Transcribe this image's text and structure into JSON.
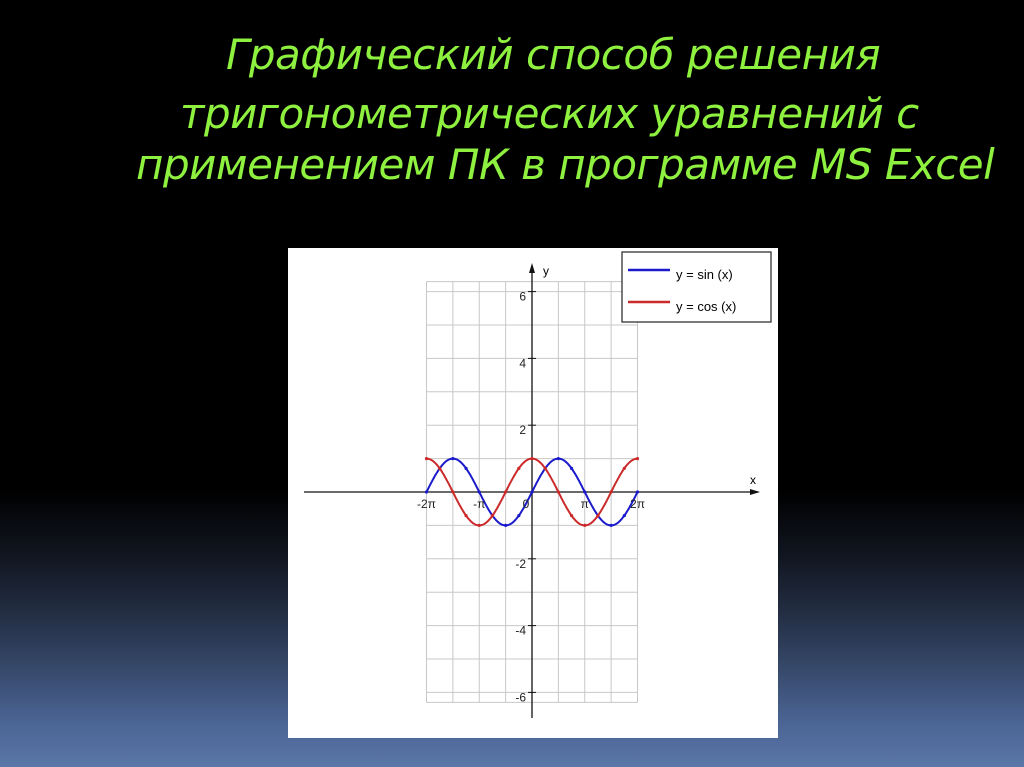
{
  "slide": {
    "title_lines": [
      "Графический способ решения",
      "тригонометрических уравнений  с",
      "применением ПК в программе MS Excel"
    ],
    "title_color": "#8ef03f"
  },
  "chart_data": {
    "type": "line",
    "title": "",
    "xlabel": "x",
    "ylabel": "y",
    "xlim": [
      -6.283,
      6.283
    ],
    "ylim": [
      -7,
      7
    ],
    "grid": true,
    "legend_position": "top-right",
    "x_ticks": [
      {
        "value": -6.283,
        "label": "-2π"
      },
      {
        "value": -3.1416,
        "label": "-π"
      },
      {
        "value": 0,
        "label": "0"
      },
      {
        "value": 3.1416,
        "label": "π"
      },
      {
        "value": 6.283,
        "label": "2π"
      }
    ],
    "y_ticks": [
      {
        "value": 6,
        "label": "6"
      },
      {
        "value": 4,
        "label": "4"
      },
      {
        "value": 2,
        "label": "2"
      },
      {
        "value": -2,
        "label": "-2"
      },
      {
        "value": -4,
        "label": "-4"
      },
      {
        "value": -6,
        "label": "-6"
      }
    ],
    "series": [
      {
        "name": "y = sin (x)",
        "function": "sin",
        "color": "#1a1acc",
        "x": [
          -6.283,
          -5.498,
          -4.712,
          -3.927,
          -3.142,
          -2.356,
          -1.571,
          -0.785,
          0,
          0.785,
          1.571,
          2.356,
          3.142,
          3.927,
          4.712,
          5.498,
          6.283
        ],
        "y": [
          0,
          0.707,
          1,
          0.707,
          0,
          -0.707,
          -1,
          -0.707,
          0,
          0.707,
          1,
          0.707,
          0,
          -0.707,
          -1,
          -0.707,
          0
        ]
      },
      {
        "name": "y = cos (x)",
        "function": "cos",
        "color": "#cc2a2a",
        "x": [
          -6.283,
          -5.498,
          -4.712,
          -3.927,
          -3.142,
          -2.356,
          -1.571,
          -0.785,
          0,
          0.785,
          1.571,
          2.356,
          3.142,
          3.927,
          4.712,
          5.498,
          6.283
        ],
        "y": [
          1,
          0.707,
          0,
          -0.707,
          -1,
          -0.707,
          0,
          0.707,
          1,
          0.707,
          0,
          -0.707,
          -1,
          -0.707,
          0,
          0.707,
          1
        ]
      }
    ]
  }
}
